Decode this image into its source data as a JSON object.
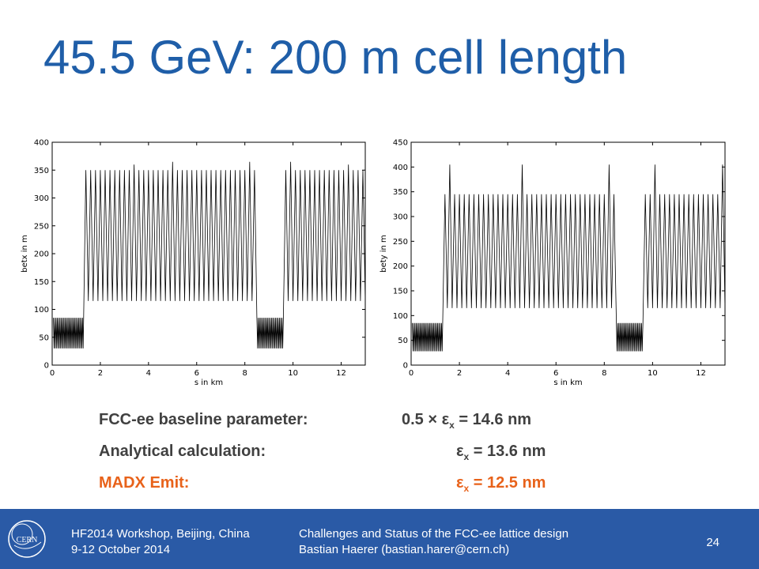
{
  "slide": {
    "title": "45.5 GeV: 200 m cell length",
    "page_number": "24"
  },
  "parameters": [
    {
      "label": "FCC-ee baseline parameter:",
      "prefix": "0.5 × ",
      "symbol": "ε",
      "subscript": "x",
      "value": " = 14.6 nm",
      "color": "#404040"
    },
    {
      "label": "Analytical calculation:",
      "prefix": "",
      "symbol": "ε",
      "subscript": "x",
      "value": " = 13.6 nm",
      "color": "#404040"
    },
    {
      "label": "MADX Emit:",
      "prefix": "",
      "symbol": "ε",
      "subscript": "x",
      "value": " = 12.5 nm",
      "color": "#e8621a"
    }
  ],
  "footer": {
    "left_line1": "HF2014 Workshop, Beijing, China",
    "left_line2": "9-12 October 2014",
    "center_line1": "Challenges and Status of the FCC-ee lattice design",
    "center_line2": "Bastian Haerer (bastian.harer@cern.ch)",
    "logo_text": "CERN",
    "background": "#2a5aa6"
  },
  "chart_data": [
    {
      "type": "line",
      "xlabel": "s in km",
      "ylabel": "betx in m",
      "xlim": [
        0,
        13
      ],
      "ylim": [
        0,
        400
      ],
      "xticks": [
        0,
        2,
        4,
        6,
        8,
        10,
        12
      ],
      "yticks": [
        0,
        50,
        100,
        150,
        200,
        250,
        300,
        350,
        400
      ],
      "grid": false,
      "segments": [
        {
          "x_start": 0.05,
          "x_end": 1.3,
          "low": 30,
          "high": 85,
          "period_km": 0.055,
          "kind": "dispersion_suppressor"
        },
        {
          "x_start": 1.4,
          "x_end": 8.4,
          "low": 115,
          "high": 350,
          "period_km": 0.2,
          "kind": "arc_cell",
          "spikes": [
            {
              "x": 1.5,
              "y": 365
            },
            {
              "x": 3.5,
              "y": 360
            },
            {
              "x": 4.9,
              "y": 365
            },
            {
              "x": 8.2,
              "y": 365
            }
          ]
        },
        {
          "x_start": 8.5,
          "x_end": 9.6,
          "low": 30,
          "high": 85,
          "period_km": 0.055,
          "kind": "dispersion_suppressor"
        },
        {
          "x_start": 9.7,
          "x_end": 13.0,
          "low": 115,
          "high": 350,
          "period_km": 0.2,
          "kind": "arc_cell",
          "spikes": [
            {
              "x": 9.9,
              "y": 365
            },
            {
              "x": 12.2,
              "y": 360
            }
          ]
        }
      ]
    },
    {
      "type": "line",
      "xlabel": "s in km",
      "ylabel": "bety in m",
      "xlim": [
        0,
        13
      ],
      "ylim": [
        0,
        450
      ],
      "xticks": [
        0,
        2,
        4,
        6,
        8,
        10,
        12
      ],
      "yticks": [
        0,
        50,
        100,
        150,
        200,
        250,
        300,
        350,
        400,
        450
      ],
      "grid": false,
      "segments": [
        {
          "x_start": 0.05,
          "x_end": 1.3,
          "low": 28,
          "high": 85,
          "period_km": 0.055,
          "kind": "dispersion_suppressor"
        },
        {
          "x_start": 1.4,
          "x_end": 8.4,
          "low": 115,
          "high": 345,
          "period_km": 0.2,
          "kind": "arc_cell",
          "spikes": [
            {
              "x": 1.7,
              "y": 405
            },
            {
              "x": 4.6,
              "y": 405
            },
            {
              "x": 8.1,
              "y": 405
            }
          ]
        },
        {
          "x_start": 8.5,
          "x_end": 9.6,
          "low": 28,
          "high": 85,
          "period_km": 0.055,
          "kind": "dispersion_suppressor"
        },
        {
          "x_start": 9.7,
          "x_end": 13.0,
          "low": 115,
          "high": 345,
          "period_km": 0.2,
          "kind": "arc_cell",
          "spikes": [
            {
              "x": 10.1,
              "y": 405
            },
            {
              "x": 12.9,
              "y": 405
            }
          ]
        }
      ]
    }
  ]
}
